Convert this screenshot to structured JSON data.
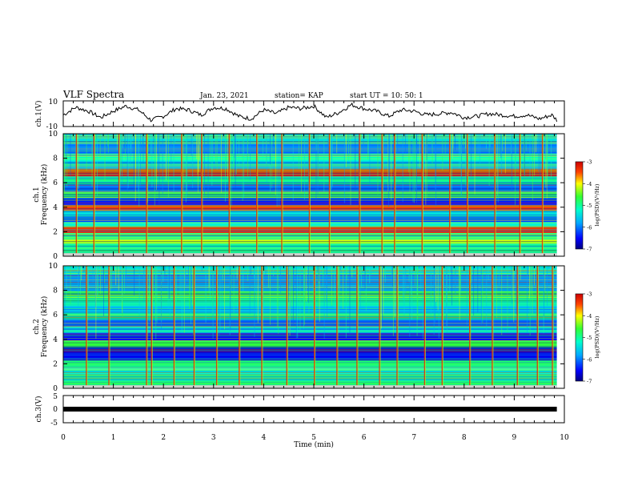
{
  "header": {
    "title": "VLF Spectra",
    "date": "Jan. 23, 2021",
    "station": "station= KAP",
    "start": "start UT =  10: 50: 1"
  },
  "chart_data": [
    {
      "type": "line",
      "ylabel": "ch.1(V)",
      "ylim": [
        -10,
        10
      ],
      "yticks": [
        "10",
        "-10"
      ],
      "x": [
        0,
        0.25,
        0.5,
        0.75,
        1,
        1.25,
        1.5,
        1.75,
        2,
        2.25,
        2.5,
        2.75,
        3,
        3.25,
        3.5,
        3.75,
        4,
        4.25,
        4.5,
        4.75,
        5,
        5.25,
        5.5,
        5.75,
        6,
        6.25,
        6.5,
        6.75,
        7,
        7.25,
        7.5,
        7.75,
        8,
        8.25,
        8.5,
        8.75,
        9,
        9.25,
        9.5,
        9.75,
        9.85
      ],
      "values": [
        -1,
        5,
        2,
        -3,
        2,
        6,
        3,
        -5,
        -2,
        4,
        3,
        -1,
        5,
        4,
        -2,
        -4,
        3,
        0,
        5,
        4,
        6,
        -3,
        1,
        7,
        4,
        2,
        -2,
        3,
        2,
        -1,
        0,
        1,
        -3,
        -2,
        0,
        -1,
        -2,
        -1,
        -4,
        -1,
        -5
      ]
    },
    {
      "type": "heatmap",
      "ylabel": "Frequency (kHz)",
      "ylabel_channel": "ch.1",
      "ylim": [
        0,
        10
      ],
      "yticks": [
        "0",
        "2",
        "4",
        "6",
        "8",
        "10"
      ],
      "colorbar": {
        "label": "log(PSD)(V²/Hz)",
        "range": [
          -7,
          -3
        ],
        "ticks": [
          "-3",
          "-4",
          "-5",
          "-6",
          "-7"
        ]
      },
      "bands": [
        {
          "f": 0.3,
          "value": -4.8
        },
        {
          "f": 0.8,
          "value": -5.0
        },
        {
          "f": 1.2,
          "value": -4.2
        },
        {
          "f": 1.6,
          "value": -5.0
        },
        {
          "f": 2.2,
          "value": -3.3
        },
        {
          "f": 2.6,
          "value": -5.2
        },
        {
          "f": 3.0,
          "value": -6.2
        },
        {
          "f": 3.5,
          "value": -5.4
        },
        {
          "f": 3.9,
          "value": -3.5
        },
        {
          "f": 4.5,
          "value": -6.5
        },
        {
          "f": 5.0,
          "value": -4.8
        },
        {
          "f": 5.5,
          "value": -6.0
        },
        {
          "f": 6.2,
          "value": -5.0
        },
        {
          "f": 6.8,
          "value": -3.3
        },
        {
          "f": 7.4,
          "value": -5.5
        },
        {
          "f": 8.0,
          "value": -5.2
        },
        {
          "f": 8.8,
          "value": -6.0
        },
        {
          "f": 9.5,
          "value": -5.3
        }
      ],
      "spikes_min": [
        0.25,
        0.6,
        1.1,
        1.65,
        2.35,
        2.75,
        3.3,
        3.85,
        4.35,
        4.9,
        5.3,
        5.9,
        6.35,
        6.6,
        7.15,
        7.7,
        8.05,
        8.6,
        9.1,
        9.55
      ]
    },
    {
      "type": "heatmap",
      "ylabel": "Frequency (kHz)",
      "ylabel_channel": "ch.2",
      "ylim": [
        0,
        10
      ],
      "yticks": [
        "0",
        "2",
        "4",
        "6",
        "8",
        "10"
      ],
      "colorbar": {
        "label": "log(PSD)(V²/Hz)",
        "range": [
          -7,
          -3
        ],
        "ticks": [
          "-3",
          "-4",
          "-5",
          "-6",
          "-7"
        ]
      },
      "bands": [
        {
          "f": 0.3,
          "value": -4.7
        },
        {
          "f": 0.9,
          "value": -5.0
        },
        {
          "f": 1.4,
          "value": -5.2
        },
        {
          "f": 2.0,
          "value": -4.8
        },
        {
          "f": 2.6,
          "value": -6.6
        },
        {
          "f": 3.1,
          "value": -6.7
        },
        {
          "f": 3.6,
          "value": -4.6
        },
        {
          "f": 4.2,
          "value": -6.5
        },
        {
          "f": 4.8,
          "value": -5.4
        },
        {
          "f": 5.3,
          "value": -6.3
        },
        {
          "f": 5.9,
          "value": -5.0
        },
        {
          "f": 6.5,
          "value": -5.6
        },
        {
          "f": 7.0,
          "value": -5.0
        },
        {
          "f": 7.6,
          "value": -4.8
        },
        {
          "f": 8.3,
          "value": -5.6
        },
        {
          "f": 9.0,
          "value": -6.0
        },
        {
          "f": 9.6,
          "value": -5.2
        }
      ],
      "spikes_min": [
        0.45,
        0.9,
        1.65,
        1.75,
        2.2,
        2.6,
        3.05,
        3.5,
        3.95,
        4.45,
        5.0,
        5.45,
        5.85,
        6.3,
        6.65,
        7.2,
        7.55,
        8.1,
        8.55,
        9.05,
        9.45,
        9.75
      ]
    },
    {
      "type": "line",
      "ylabel": "ch.3(V)",
      "ylim": [
        -5,
        5
      ],
      "yticks": [
        "5",
        "0",
        "-5"
      ],
      "x": [
        0,
        9.85
      ],
      "values": [
        0,
        0
      ]
    }
  ],
  "xaxis": {
    "label": "Time (min)",
    "ticks": [
      "0",
      "1",
      "2",
      "3",
      "4",
      "5",
      "6",
      "7",
      "8",
      "9",
      "10"
    ],
    "xlim": [
      0,
      10
    ]
  }
}
